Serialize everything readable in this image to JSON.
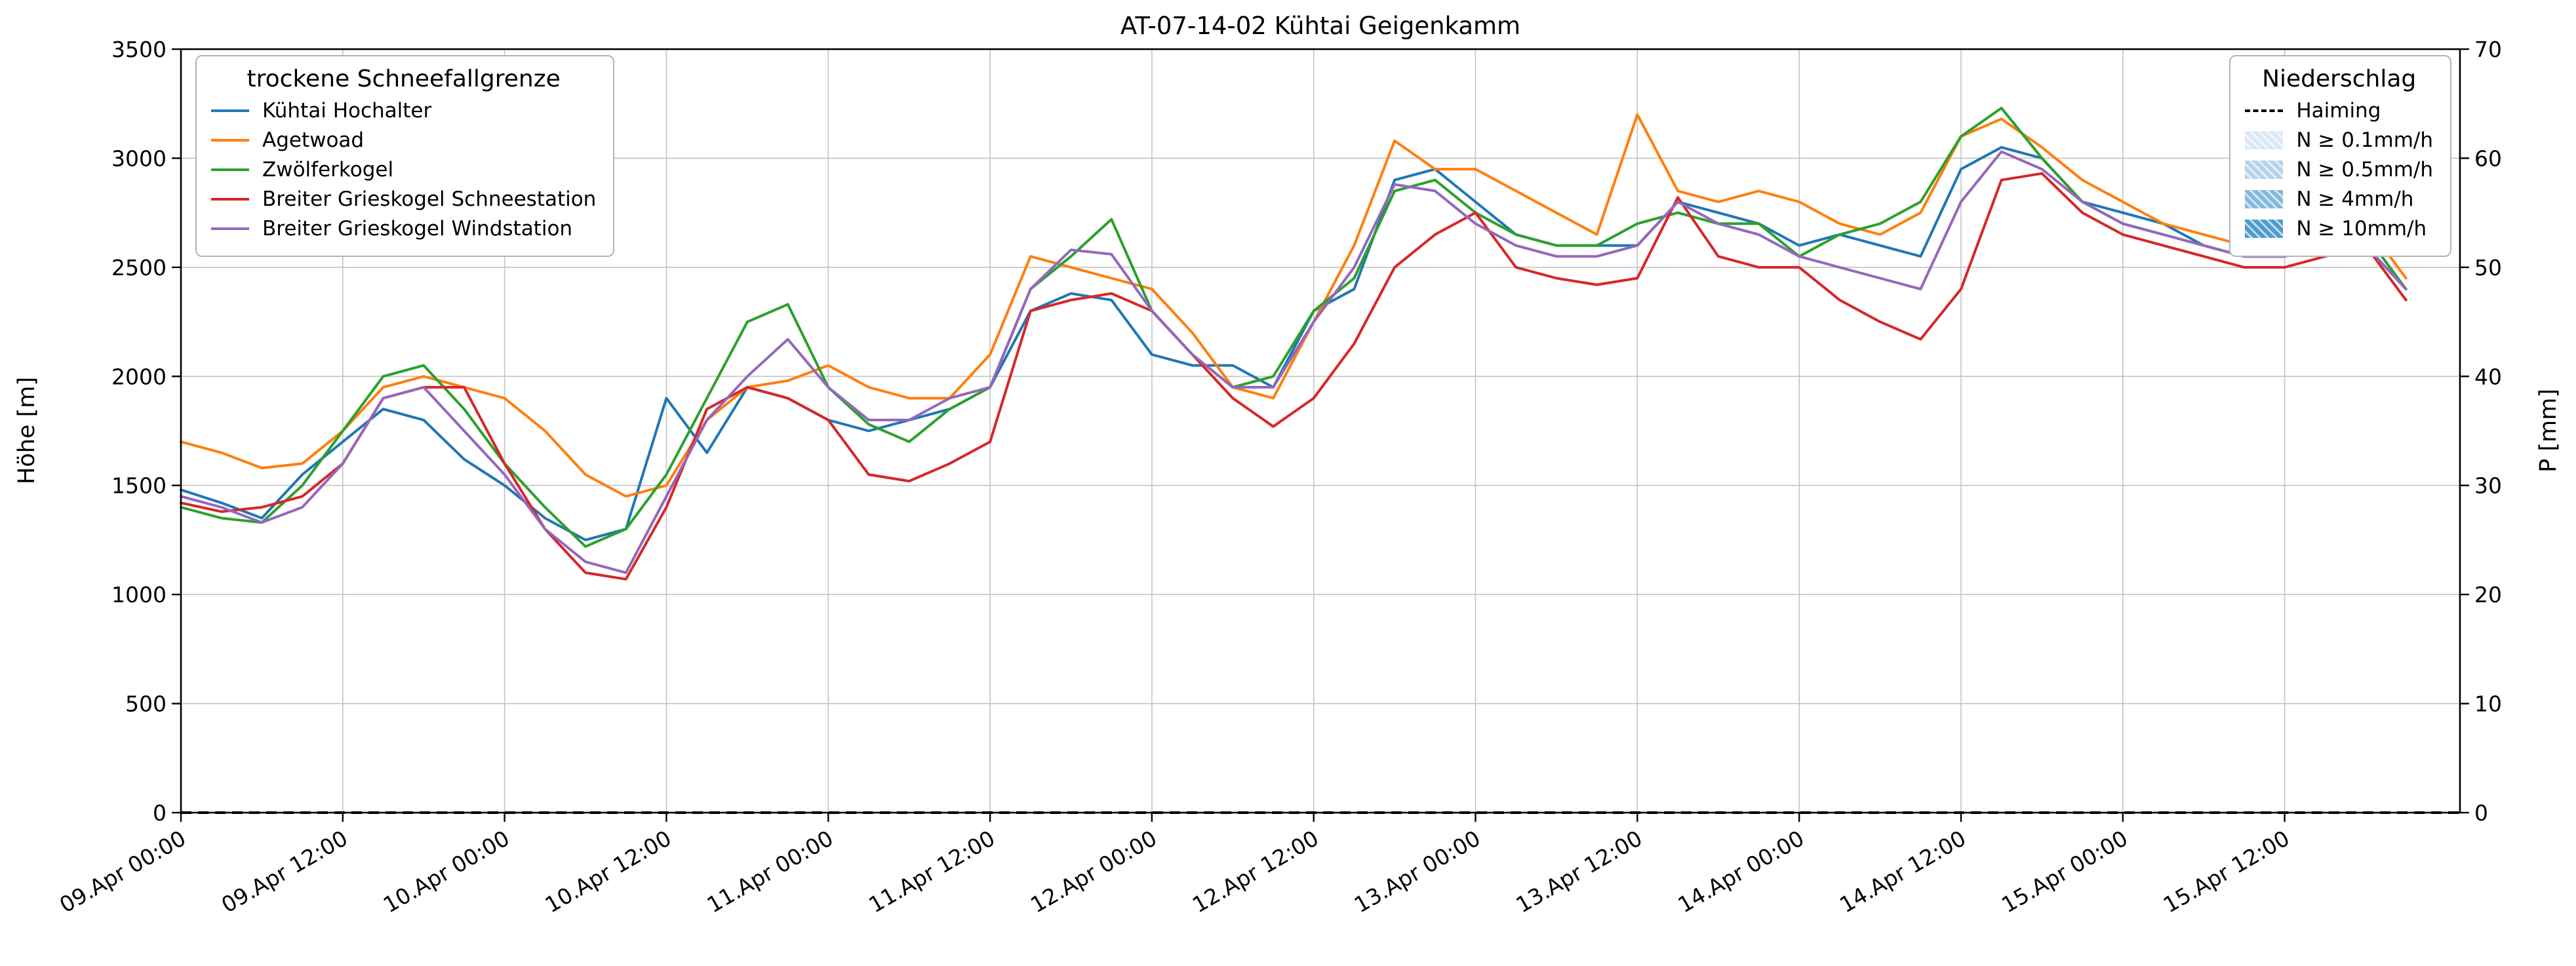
{
  "chart_data": {
    "type": "line",
    "title": "AT-07-14-02 Kühtai Geigenkamm",
    "ylabel": "Höhe [m]",
    "y2label": "P [mm]",
    "ylim": [
      0,
      3500
    ],
    "y2lim": [
      0,
      70
    ],
    "grid": true,
    "y_ticks_left": [
      0,
      500,
      1000,
      1500,
      2000,
      2500,
      3000,
      3500
    ],
    "y_ticks_right": [
      0,
      10,
      20,
      30,
      40,
      50,
      60,
      70
    ],
    "x_range_hours": [
      0,
      169
    ],
    "x_start": "09.Apr 00:00",
    "x_tick_hours": [
      0,
      12,
      24,
      36,
      48,
      60,
      72,
      84,
      96,
      108,
      120,
      132,
      144,
      156
    ],
    "x_tick_labels": [
      "09.Apr 00:00",
      "09.Apr 12:00",
      "10.Apr 00:00",
      "10.Apr 12:00",
      "11.Apr 00:00",
      "11.Apr 12:00",
      "12.Apr 00:00",
      "12.Apr 12:00",
      "13.Apr 00:00",
      "13.Apr 12:00",
      "14.Apr 00:00",
      "14.Apr 12:00",
      "15.Apr 00:00",
      "15.Apr 12:00"
    ],
    "x_hours": [
      0,
      3,
      6,
      9,
      12,
      15,
      18,
      21,
      24,
      27,
      30,
      33,
      36,
      39,
      42,
      45,
      48,
      51,
      54,
      57,
      60,
      63,
      66,
      69,
      72,
      75,
      78,
      81,
      84,
      87,
      90,
      93,
      96,
      99,
      102,
      105,
      108,
      111,
      114,
      117,
      120,
      123,
      126,
      129,
      132,
      135,
      138,
      141,
      144,
      147,
      150,
      153,
      156,
      159,
      162,
      165
    ],
    "series": [
      {
        "name": "Kühtai Hochalter",
        "color": "#1f77b4",
        "values": [
          1480,
          1420,
          1350,
          1550,
          1700,
          1850,
          1800,
          1620,
          1500,
          1350,
          1250,
          1300,
          1900,
          1650,
          1950,
          1900,
          1800,
          1750,
          1800,
          1850,
          1950,
          2300,
          2380,
          2350,
          2100,
          2050,
          2050,
          1950,
          2300,
          2400,
          2900,
          2950,
          2800,
          2650,
          2600,
          2600,
          2600,
          2800,
          2750,
          2700,
          2600,
          2650,
          2600,
          2550,
          2950,
          3050,
          3000,
          2800,
          2750,
          2700,
          2600,
          2550,
          2550,
          2600,
          2600,
          2400
        ]
      },
      {
        "name": "Agetwoad",
        "color": "#ff7f0e",
        "values": [
          1700,
          1650,
          1580,
          1600,
          1750,
          1950,
          2000,
          1950,
          1900,
          1750,
          1550,
          1450,
          1500,
          1800,
          1950,
          1980,
          2050,
          1950,
          1900,
          1900,
          2100,
          2550,
          2500,
          2450,
          2400,
          2200,
          1950,
          1900,
          2250,
          2600,
          3080,
          2950,
          2950,
          2850,
          2750,
          2650,
          3200,
          2850,
          2800,
          2850,
          2800,
          2700,
          2650,
          2750,
          3100,
          3180,
          3050,
          2900,
          2800,
          2700,
          2650,
          2600,
          2600,
          2650,
          2700,
          2450
        ]
      },
      {
        "name": "Zwölferkogel",
        "color": "#2ca02c",
        "values": [
          1400,
          1350,
          1330,
          1500,
          1750,
          2000,
          2050,
          1850,
          1600,
          1400,
          1220,
          1300,
          1550,
          1900,
          2250,
          2330,
          1950,
          1780,
          1700,
          1850,
          1950,
          2400,
          2550,
          2720,
          2300,
          2100,
          1950,
          2000,
          2300,
          2450,
          2850,
          2900,
          2750,
          2650,
          2600,
          2600,
          2700,
          2750,
          2700,
          2700,
          2550,
          2650,
          2700,
          2800,
          3100,
          3230,
          3000,
          2800,
          2700,
          2650,
          2600,
          2550,
          2600,
          2650,
          2650,
          2400
        ]
      },
      {
        "name": "Breiter Grieskogel Schneestation",
        "color": "#d62728",
        "values": [
          1420,
          1380,
          1400,
          1450,
          1600,
          1900,
          1950,
          1950,
          1600,
          1300,
          1100,
          1070,
          1400,
          1850,
          1950,
          1900,
          1800,
          1550,
          1520,
          1600,
          1700,
          2300,
          2350,
          2380,
          2300,
          2100,
          1900,
          1770,
          1900,
          2150,
          2500,
          2650,
          2750,
          2500,
          2450,
          2420,
          2450,
          2820,
          2550,
          2500,
          2500,
          2350,
          2250,
          2170,
          2400,
          2900,
          2930,
          2750,
          2650,
          2600,
          2550,
          2500,
          2500,
          2550,
          2600,
          2350
        ]
      },
      {
        "name": "Breiter Grieskogel Windstation",
        "color": "#9467bd",
        "values": [
          1450,
          1400,
          1330,
          1400,
          1600,
          1900,
          1950,
          1750,
          1550,
          1300,
          1150,
          1100,
          1450,
          1800,
          2000,
          2170,
          1950,
          1800,
          1800,
          1900,
          1950,
          2400,
          2580,
          2560,
          2300,
          2100,
          1950,
          1950,
          2250,
          2500,
          2880,
          2850,
          2700,
          2600,
          2550,
          2550,
          2600,
          2800,
          2700,
          2650,
          2550,
          2500,
          2450,
          2400,
          2800,
          3030,
          2950,
          2800,
          2700,
          2650,
          2600,
          2550,
          2550,
          2600,
          2600,
          2400
        ]
      }
    ],
    "precipitation": {
      "name": "Haiming",
      "constant_mm": 0,
      "line_style": "dashed-black"
    },
    "legend_positions": {
      "snowfall": "upper left",
      "precip": "upper right"
    }
  },
  "legend_sfg": {
    "title": "trockene Schneefallgrenze"
  },
  "legend_precip": {
    "title": "Niederschlag",
    "line_item": {
      "label": "Haiming"
    },
    "patch_items": [
      {
        "label": "N ≥ 0.1mm/h",
        "color": "#dae8f6"
      },
      {
        "label": "N ≥ 0.5mm/h",
        "color": "#b4d3ea"
      },
      {
        "label": "N ≥ 4mm/h",
        "color": "#85b8dd"
      },
      {
        "label": "N ≥ 10mm/h",
        "color": "#4f9acf"
      }
    ]
  }
}
